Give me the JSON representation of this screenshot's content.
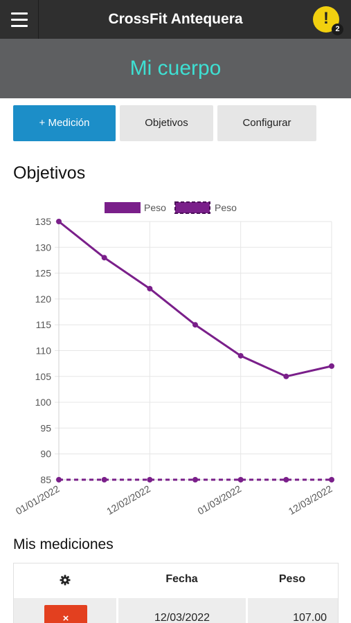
{
  "header": {
    "title": "CrossFit Antequera",
    "menu_icon": "hamburger-menu-icon",
    "alert_icon": "exclamation-icon",
    "alert_symbol": "!",
    "notification_count": "2"
  },
  "hero": {
    "title": "Mi cuerpo"
  },
  "actions": {
    "add_label": "+ Medición",
    "goals_label": "Objetivos",
    "settings_label": "Configurar"
  },
  "goals_section": {
    "title": "Objetivos"
  },
  "chart_data": {
    "type": "line",
    "title": "",
    "xlabel": "",
    "ylabel": "",
    "x": [
      "01/01/2022",
      "",
      "12/02/2022",
      "",
      "01/03/2022",
      "",
      "12/03/2022"
    ],
    "ylim": [
      85,
      135
    ],
    "yticks": [
      135,
      130,
      125,
      120,
      115,
      110,
      105,
      100,
      95,
      90,
      85
    ],
    "grid": true,
    "legend": "top",
    "series": [
      {
        "name": "Peso",
        "style": "solid",
        "color": "#7a1f8a",
        "values": [
          135,
          128,
          122,
          115,
          109,
          105,
          107
        ]
      },
      {
        "name": "Peso",
        "style": "dashed",
        "color": "#7a1f8a",
        "values": [
          85,
          85,
          85,
          85,
          85,
          85,
          85
        ]
      }
    ]
  },
  "measurements": {
    "title": "Mis mediciones",
    "header_icon": "gear-icon",
    "columns": [
      "Fecha",
      "Peso"
    ],
    "rows": [
      {
        "delete_label": "×",
        "fecha": "12/03/2022",
        "peso": "107.00"
      }
    ]
  },
  "colors": {
    "topbar": "#2f2f2f",
    "hero_bg": "#5e5f61",
    "hero_text": "#3ee0d3",
    "primary": "#1c8ec8",
    "alert": "#f2d00f",
    "danger": "#e3401f",
    "series": "#7a1f8a"
  }
}
